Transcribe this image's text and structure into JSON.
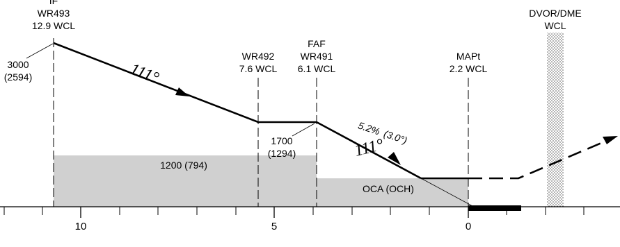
{
  "fixes": {
    "if": {
      "type": "IF",
      "name": "WR493",
      "dist": "12.9 WCL",
      "alt": "3000",
      "height": "(2594)"
    },
    "wr492": {
      "name": "WR492",
      "dist": "7.6 WCL"
    },
    "faf": {
      "type": "FAF",
      "name": "WR491",
      "dist": "6.1 WCL",
      "alt": "1700",
      "height": "(1294)"
    },
    "mapt": {
      "name": "MAPt",
      "dist": "2.2 WCL"
    },
    "dvor": {
      "name": "DVOR/DME",
      "ident": "WCL"
    }
  },
  "segments": {
    "initial_course": "111°",
    "final_course": "111°",
    "final_gradient": "5.2%",
    "final_angle": "(3.0°)"
  },
  "obstacle_areas": {
    "intermediate_label": "1200 (794)",
    "final_label": "OCA (OCH)"
  },
  "scale": {
    "tick_labels": [
      "10",
      "5",
      "0"
    ]
  },
  "colors": {
    "ink": "#000000",
    "obstacle_fill": "#d0d0d0",
    "background": "#ffffff"
  }
}
